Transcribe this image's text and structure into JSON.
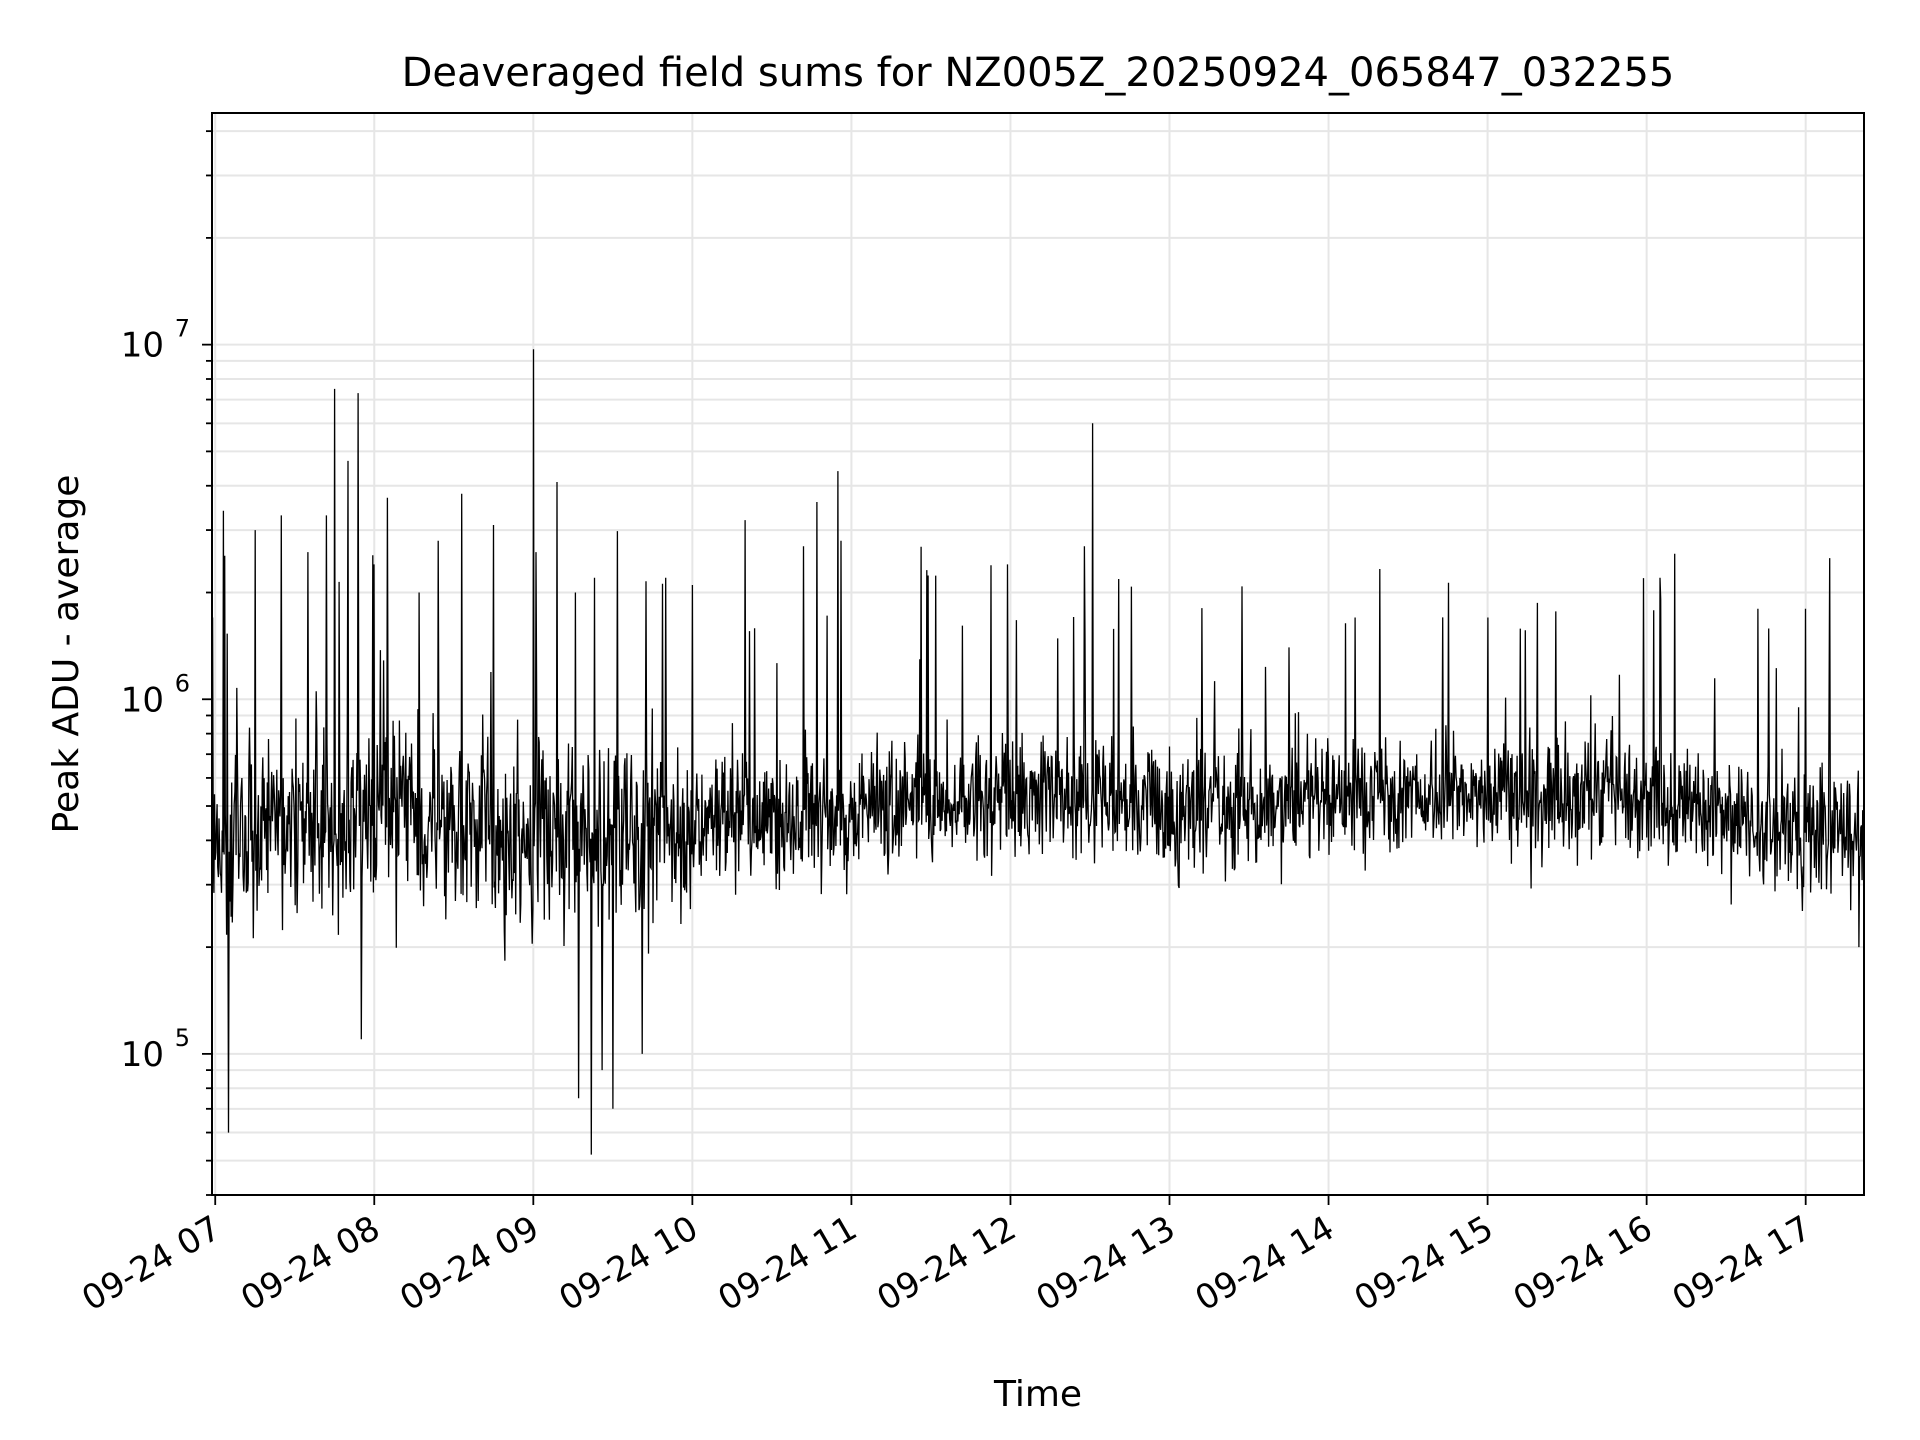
{
  "chart_data": {
    "type": "line",
    "title": "Deaveraged field sums for NZ005Z_20250924_065847_032255",
    "xlabel": "Time",
    "ylabel": "Peak ADU - average",
    "yscale": "log",
    "ylim": [
      40000,
      45000000
    ],
    "xlim": [
      "09-24 06:58:47",
      "09-24 17:22:00"
    ],
    "x_ticks": [
      "09-24 07",
      "09-24 08",
      "09-24 09",
      "09-24 10",
      "09-24 11",
      "09-24 12",
      "09-24 13",
      "09-24 14",
      "09-24 15",
      "09-24 16",
      "09-24 17"
    ],
    "y_ticks": [
      {
        "base": "10",
        "exp": "5",
        "value": 100000
      },
      {
        "base": "10",
        "exp": "6",
        "value": 1000000
      },
      {
        "base": "10",
        "exp": "7",
        "value": 10000000
      }
    ],
    "grid": true,
    "line_color": "#000000",
    "grid_color": "#e6e6e6",
    "series": [
      {
        "baseline": [
          [
            "09-24 07:00",
            400000
          ],
          [
            "09-24 08:00",
            480000
          ],
          [
            "09-24 09:00",
            400000
          ],
          [
            "09-24 10:00",
            450000
          ],
          [
            "09-24 11:00",
            480000
          ],
          [
            "09-24 12:00",
            560000
          ],
          [
            "09-24 13:00",
            500000
          ],
          [
            "09-24 14:00",
            520000
          ],
          [
            "09-24 15:00",
            540000
          ],
          [
            "09-24 16:00",
            520000
          ],
          [
            "09-24 17:00",
            420000
          ]
        ],
        "spikes": [
          [
            "09-24 06:59",
            1700000
          ],
          [
            "09-24 07:03",
            3400000
          ],
          [
            "09-24 07:05",
            60000
          ],
          [
            "09-24 07:15",
            3000000
          ],
          [
            "09-24 07:25",
            3300000
          ],
          [
            "09-24 07:35",
            2600000
          ],
          [
            "09-24 07:42",
            3300000
          ],
          [
            "09-24 07:45",
            7500000
          ],
          [
            "09-24 07:50",
            4700000
          ],
          [
            "09-24 07:54",
            7300000
          ],
          [
            "09-24 07:55",
            110000
          ],
          [
            "09-24 08:00",
            2400000
          ],
          [
            "09-24 08:05",
            3700000
          ],
          [
            "09-24 08:17",
            2000000
          ],
          [
            "09-24 08:24",
            2800000
          ],
          [
            "09-24 08:33",
            3800000
          ],
          [
            "09-24 08:45",
            3100000
          ],
          [
            "09-24 09:00",
            9700000
          ],
          [
            "09-24 09:01",
            2600000
          ],
          [
            "09-24 09:09",
            4100000
          ],
          [
            "09-24 09:16",
            2000000
          ],
          [
            "09-24 09:17",
            75000
          ],
          [
            "09-24 09:22",
            52000
          ],
          [
            "09-24 09:23",
            2200000
          ],
          [
            "09-24 09:26",
            90000
          ],
          [
            "09-24 09:30",
            70000
          ],
          [
            "09-24 09:41",
            100000
          ],
          [
            "09-24 09:50",
            2200000
          ],
          [
            "09-24 10:00",
            2100000
          ],
          [
            "09-24 10:20",
            3200000
          ],
          [
            "09-24 10:42",
            2700000
          ],
          [
            "09-24 10:47",
            3600000
          ],
          [
            "09-24 10:55",
            4400000
          ],
          [
            "09-24 10:56",
            2800000
          ],
          [
            "09-24 11:59",
            2400000
          ],
          [
            "09-24 12:28",
            2700000
          ],
          [
            "09-24 12:31",
            6000000
          ],
          [
            "09-24 13:45",
            1400000
          ],
          [
            "09-24 14:10",
            1700000
          ],
          [
            "09-24 15:00",
            1700000
          ],
          [
            "09-24 16:05",
            2200000
          ],
          [
            "09-24 16:42",
            1800000
          ],
          [
            "09-24 17:00",
            1800000
          ],
          [
            "09-24 17:09",
            2500000
          ],
          [
            "09-24 17:20",
            200000
          ]
        ]
      }
    ]
  }
}
